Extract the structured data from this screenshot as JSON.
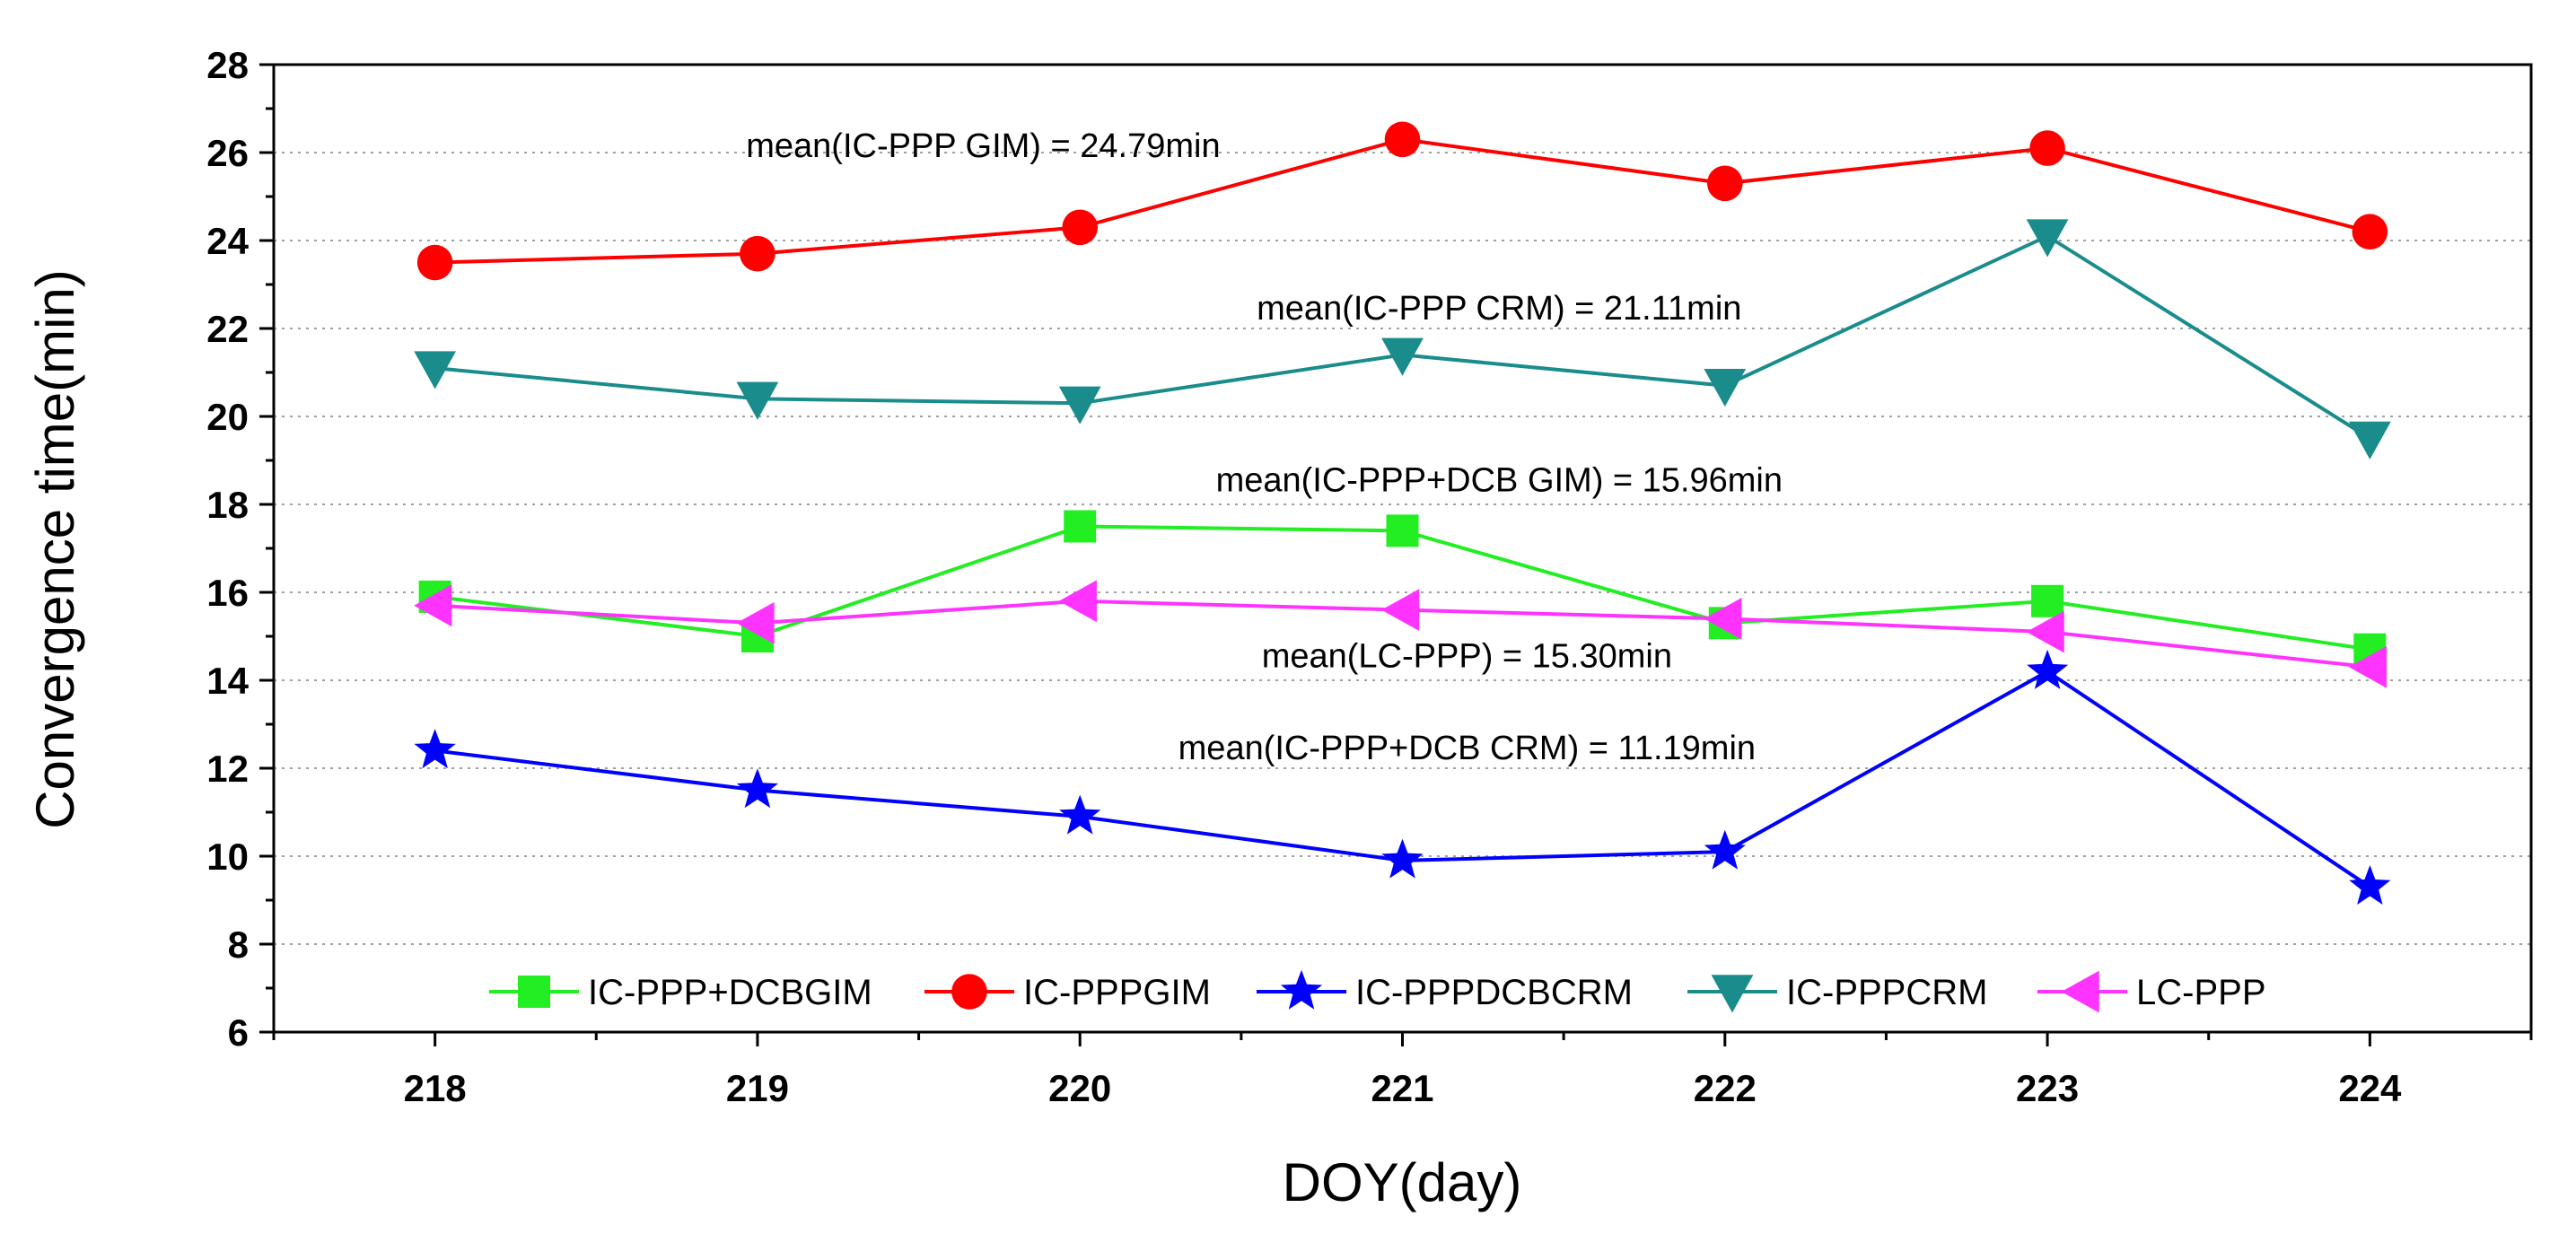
{
  "chart_data": {
    "type": "line",
    "title": "",
    "xlabel": "DOY(day)",
    "ylabel": "Convergence time(min)",
    "x": [
      218,
      219,
      220,
      221,
      222,
      223,
      224
    ],
    "xlim": [
      217.5,
      224.5
    ],
    "ylim": [
      6,
      28
    ],
    "yticks": [
      6,
      8,
      10,
      12,
      14,
      16,
      18,
      20,
      22,
      24,
      26,
      28
    ],
    "grid": "horizontal dotted",
    "legend_position": "bottom-inside",
    "series": [
      {
        "name": "IC-PPP+DCBGIM",
        "color": "#22ee22",
        "marker": "square",
        "values": [
          15.9,
          15.0,
          17.5,
          17.4,
          15.3,
          15.8,
          14.7
        ]
      },
      {
        "name": "IC-PPPGIM",
        "color": "#ff0000",
        "marker": "circle",
        "values": [
          23.5,
          23.7,
          24.3,
          26.3,
          25.3,
          26.1,
          24.2
        ]
      },
      {
        "name": "IC-PPPDCBCRM",
        "color": "#0000ff",
        "marker": "star",
        "values": [
          12.4,
          11.5,
          10.9,
          9.9,
          10.1,
          14.2,
          9.3
        ]
      },
      {
        "name": "IC-PPPCRM",
        "color": "#1a8c8c",
        "marker": "triangle-down",
        "values": [
          21.1,
          20.4,
          20.3,
          21.4,
          20.7,
          24.1,
          19.5
        ]
      },
      {
        "name": "LC-PPP",
        "color": "#ff33ff",
        "marker": "triangle-left",
        "values": [
          15.7,
          15.3,
          15.8,
          15.6,
          15.4,
          15.1,
          14.3
        ]
      }
    ],
    "annotations": [
      {
        "text": "mean(IC-PPP GIM) = 24.79min",
        "x": 219.7,
        "y": 25.9
      },
      {
        "text": "mean(IC-PPP CRM) = 21.11min",
        "x": 221.3,
        "y": 22.2
      },
      {
        "text": "mean(IC-PPP+DCB GIM) = 15.96min",
        "x": 221.3,
        "y": 18.3
      },
      {
        "text": "mean(LC-PPP) = 15.30min",
        "x": 221.2,
        "y": 14.3
      },
      {
        "text": "mean(IC-PPP+DCB CRM) = 11.19min",
        "x": 221.2,
        "y": 12.2
      }
    ]
  }
}
